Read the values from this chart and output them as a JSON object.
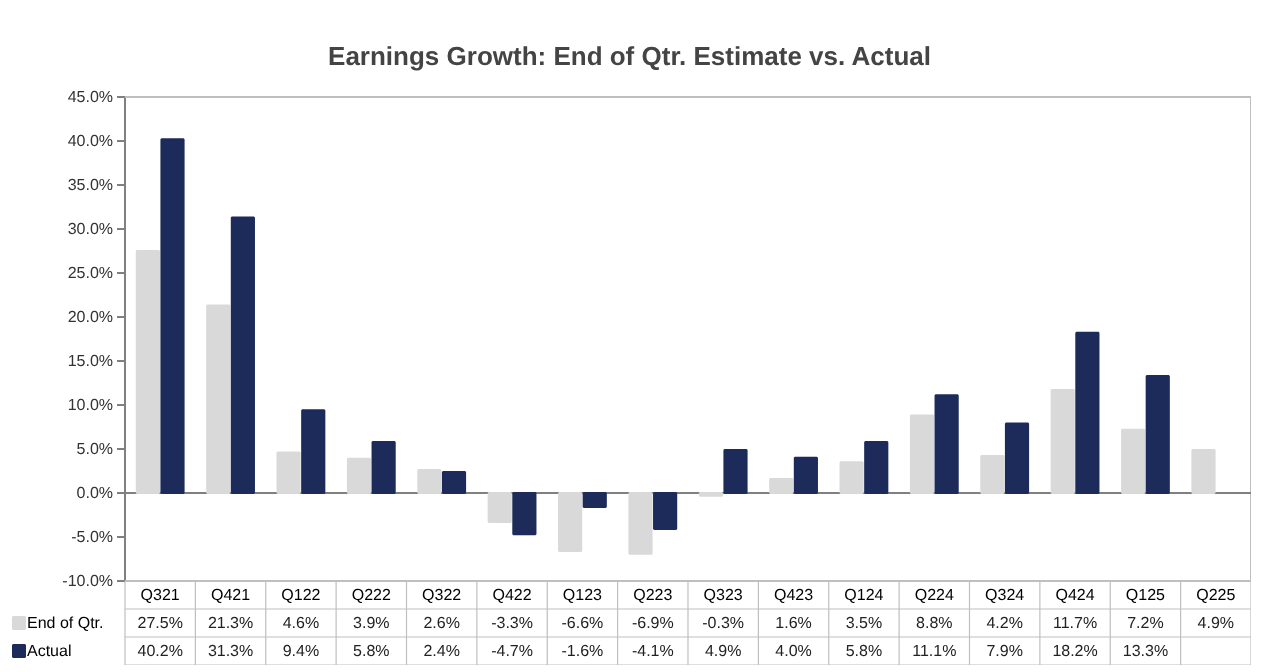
{
  "chart_data": {
    "type": "bar",
    "title": "Earnings Growth: End of Qtr. Estimate vs. Actual",
    "categories": [
      "Q321",
      "Q421",
      "Q122",
      "Q222",
      "Q322",
      "Q422",
      "Q123",
      "Q223",
      "Q323",
      "Q423",
      "Q124",
      "Q224",
      "Q324",
      "Q424",
      "Q125",
      "Q225"
    ],
    "series": [
      {
        "name": "End of Qtr.",
        "color": "#d9d9d9",
        "values": [
          27.5,
          21.3,
          4.6,
          3.9,
          2.6,
          -3.3,
          -6.6,
          -6.9,
          -0.3,
          1.6,
          3.5,
          8.8,
          4.2,
          11.7,
          7.2,
          4.9
        ],
        "value_labels": [
          "27.5%",
          "21.3%",
          "4.6%",
          "3.9%",
          "2.6%",
          "-3.3%",
          "-6.6%",
          "-6.9%",
          "-0.3%",
          "1.6%",
          "3.5%",
          "8.8%",
          "4.2%",
          "11.7%",
          "7.2%",
          "4.9%"
        ]
      },
      {
        "name": "Actual",
        "color": "#1c2b5a",
        "values": [
          40.2,
          31.3,
          9.4,
          5.8,
          2.4,
          -4.7,
          -1.6,
          -4.1,
          4.9,
          4.0,
          5.8,
          11.1,
          7.9,
          18.2,
          13.3,
          null
        ],
        "value_labels": [
          "40.2%",
          "31.3%",
          "9.4%",
          "5.8%",
          "2.4%",
          "-4.7%",
          "-1.6%",
          "-4.1%",
          "4.9%",
          "4.0%",
          "5.8%",
          "11.1%",
          "7.9%",
          "18.2%",
          "13.3%",
          null
        ]
      }
    ],
    "ylim": [
      -10,
      45
    ],
    "yticks": [
      {
        "value": -10,
        "label": "-10.0%"
      },
      {
        "value": -5,
        "label": "-5.0%"
      },
      {
        "value": 0,
        "label": "0.0%"
      },
      {
        "value": 5,
        "label": "5.0%"
      },
      {
        "value": 10,
        "label": "10.0%"
      },
      {
        "value": 15,
        "label": "15.0%"
      },
      {
        "value": 20,
        "label": "20.0%"
      },
      {
        "value": 25,
        "label": "25.0%"
      },
      {
        "value": 30,
        "label": "30.0%"
      },
      {
        "value": 35,
        "label": "35.0%"
      },
      {
        "value": 40,
        "label": "40.0%"
      },
      {
        "value": 45,
        "label": "45.0%"
      }
    ],
    "legend": "bottom left"
  }
}
